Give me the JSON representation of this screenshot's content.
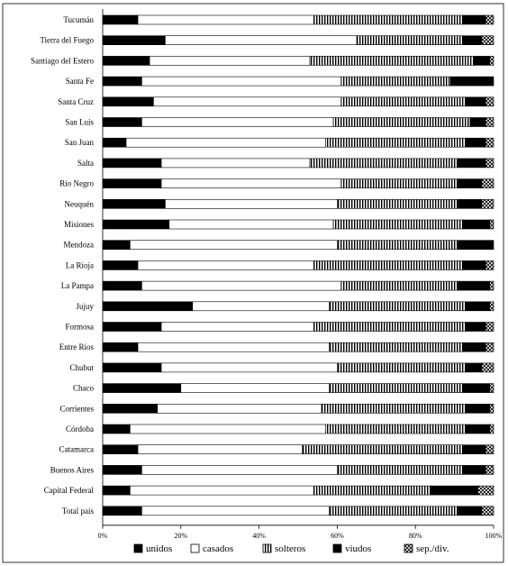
{
  "chart_data": {
    "type": "bar",
    "orientation": "horizontal",
    "stacked": "percent",
    "title": "",
    "xlabel": "",
    "ylabel": "",
    "xlim": [
      0,
      100
    ],
    "grid": false,
    "legend_position": "bottom",
    "categories": [
      "Tucumán",
      "Tierra del Fuego",
      "Santiago del Estero",
      "Santa Fe",
      "Santa Cruz",
      "San Luis",
      "San Juan",
      "Salta",
      "Río Negro",
      "Neuquén",
      "Misiones",
      "Mendoza",
      "La Rioja",
      "La Pampa",
      "Jujuy",
      "Formosa",
      "Entre Ríos",
      "Chubut",
      "Chaco",
      "Corrientes",
      "Córdoba",
      "Catamarca",
      "Buenos Aires",
      "Capital Federal",
      "Total país"
    ],
    "x_ticks": [
      "0%",
      "20%",
      "40%",
      "60%",
      "80%",
      "100%"
    ],
    "series": [
      {
        "name": "unidos",
        "values": [
          9,
          16,
          12,
          10,
          13,
          10,
          6,
          15,
          15,
          16,
          17,
          7,
          9,
          10,
          23,
          15,
          9,
          15,
          20,
          14,
          7,
          9,
          10,
          7,
          10
        ]
      },
      {
        "name": "casados",
        "values": [
          45,
          49,
          41,
          51,
          48,
          49,
          51,
          38,
          46,
          44,
          42,
          53,
          45,
          51,
          35,
          39,
          49,
          45,
          38,
          42,
          50,
          42,
          50,
          47,
          48
        ]
      },
      {
        "name": "solteros",
        "values": [
          38,
          27,
          42,
          28,
          32,
          35,
          36,
          38,
          30,
          31,
          33,
          31,
          38,
          30,
          35,
          39,
          34,
          33,
          34,
          37,
          36,
          41,
          32,
          30,
          33
        ]
      },
      {
        "name": "viudos",
        "values": [
          6,
          5,
          4,
          11,
          5,
          4,
          5,
          7,
          6,
          6,
          7,
          9,
          6,
          8,
          6,
          5,
          6,
          4,
          7,
          6,
          6,
          6,
          6,
          12,
          6
        ]
      },
      {
        "name": "sep./div.",
        "values": [
          2,
          3,
          1,
          0,
          2,
          2,
          2,
          2,
          3,
          3,
          1,
          0,
          2,
          1,
          1,
          2,
          2,
          3,
          1,
          1,
          1,
          2,
          2,
          4,
          3
        ]
      }
    ],
    "series_styles": [
      {
        "fill": "#000000"
      },
      {
        "fill": "#ffffff"
      },
      {
        "fill": "#ffffff",
        "pattern": "vertical-hatch"
      },
      {
        "fill": "#000000"
      },
      {
        "fill": "#ffffff",
        "pattern": "cross-hatch"
      }
    ]
  }
}
